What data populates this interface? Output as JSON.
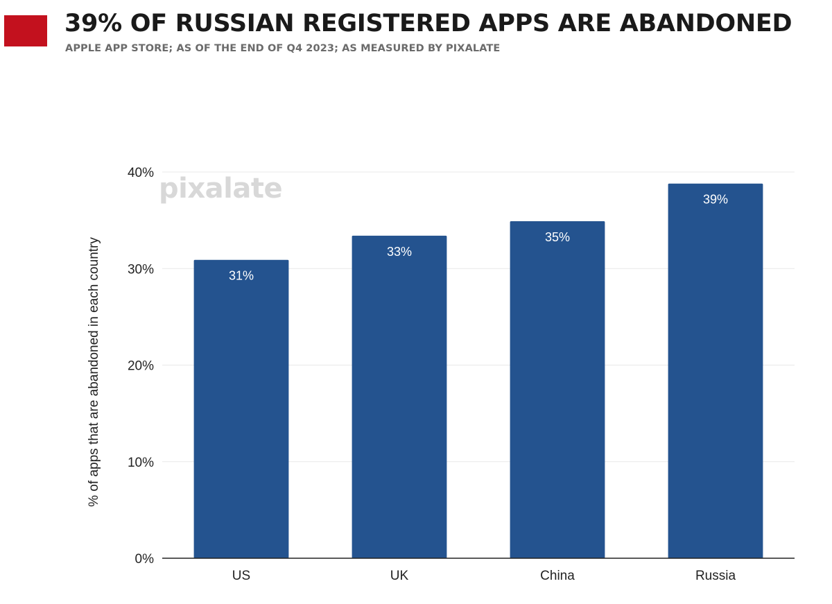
{
  "header": {
    "title": "39% OF RUSSIAN REGISTERED APPS ARE ABANDONED",
    "subtitle": "APPLE APP STORE; AS OF THE END OF Q4 2023; AS MEASURED BY PIXALATE",
    "accent_color": "#c3111e"
  },
  "watermark": {
    "text": "pixalate"
  },
  "chart_data": {
    "type": "bar",
    "categories": [
      "US",
      "UK",
      "China",
      "Russia"
    ],
    "values": [
      30.9,
      33.4,
      34.9,
      38.8
    ],
    "data_labels": [
      "31%",
      "33%",
      "35%",
      "39%"
    ],
    "ylabel": "% of apps that are abandoned in each country",
    "xlabel": "",
    "ylim": [
      0,
      40
    ],
    "yticks": [
      0,
      10,
      20,
      30,
      40
    ],
    "ytick_labels": [
      "0%",
      "10%",
      "20%",
      "30%",
      "40%"
    ],
    "grid": true,
    "legend": "none",
    "bar_color": "#24538f",
    "grid_color": "#e8e8e8",
    "axis_color": "#222222"
  }
}
